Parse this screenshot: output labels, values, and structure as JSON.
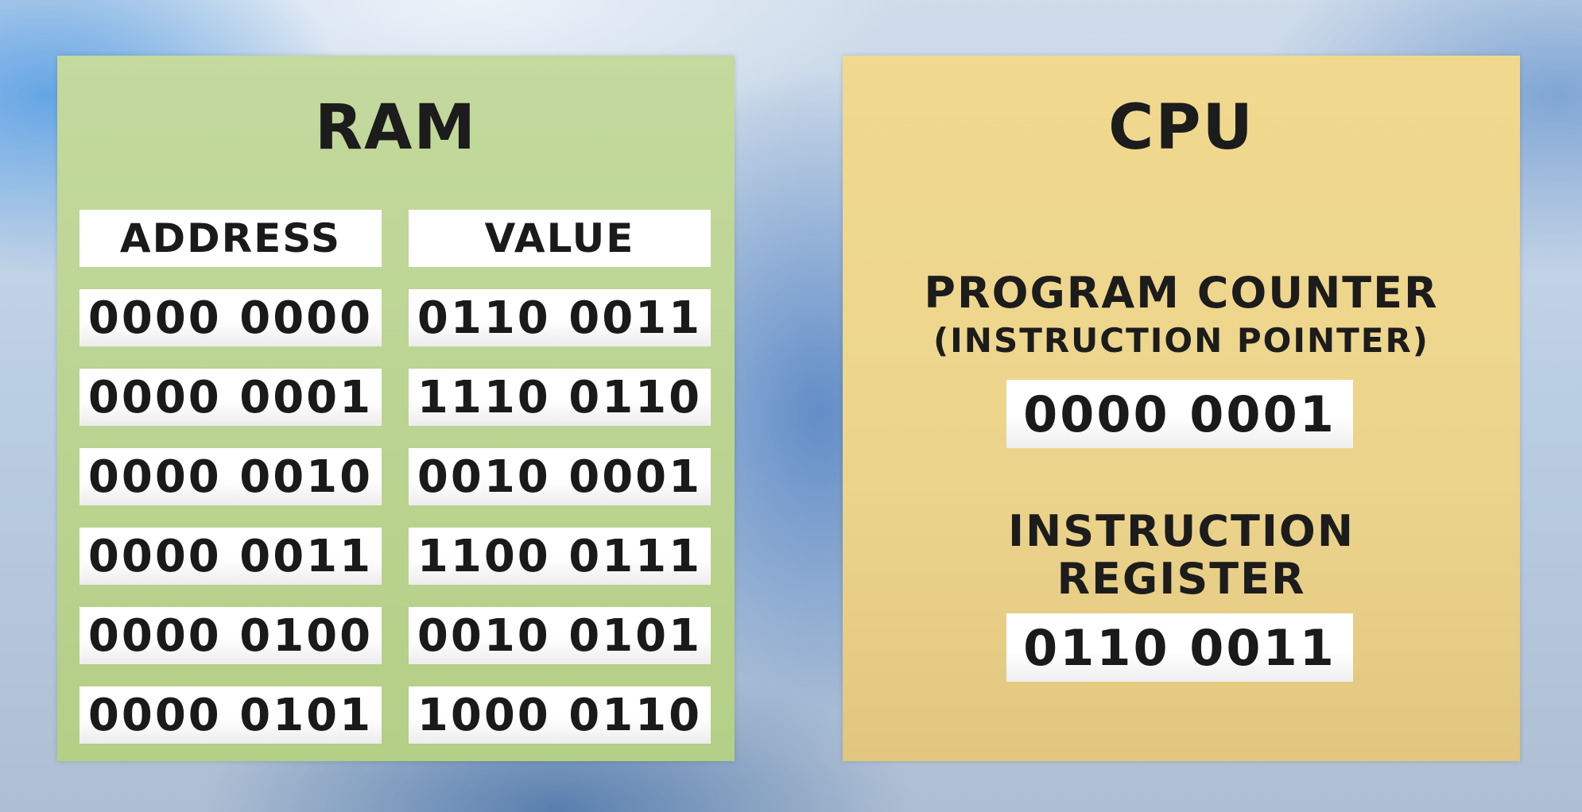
{
  "ram": {
    "title": "RAM",
    "headers": {
      "address": "ADDRESS",
      "value": "VALUE"
    },
    "rows": [
      {
        "address": "0000 0000",
        "value": "0110 0011"
      },
      {
        "address": "0000 0001",
        "value": "1110 0110"
      },
      {
        "address": "0000 0010",
        "value": "0010 0001"
      },
      {
        "address": "0000 0011",
        "value": "1100 0111"
      },
      {
        "address": "0000 0100",
        "value": "0010 0101"
      },
      {
        "address": "0000 0101",
        "value": "1000 0110"
      }
    ]
  },
  "cpu": {
    "title": "CPU",
    "program_counter": {
      "label": "PROGRAM COUNTER",
      "sublabel": "(INSTRUCTION POINTER)",
      "value": "0000 0001"
    },
    "instruction_register": {
      "label_line1": "INSTRUCTION",
      "label_line2": "REGISTER",
      "value": "0110 0011"
    }
  },
  "colors": {
    "ram_panel": "#bcd493",
    "cpu_panel": "#eed68d",
    "text": "#1c1c1c",
    "cell": "#ffffff"
  }
}
